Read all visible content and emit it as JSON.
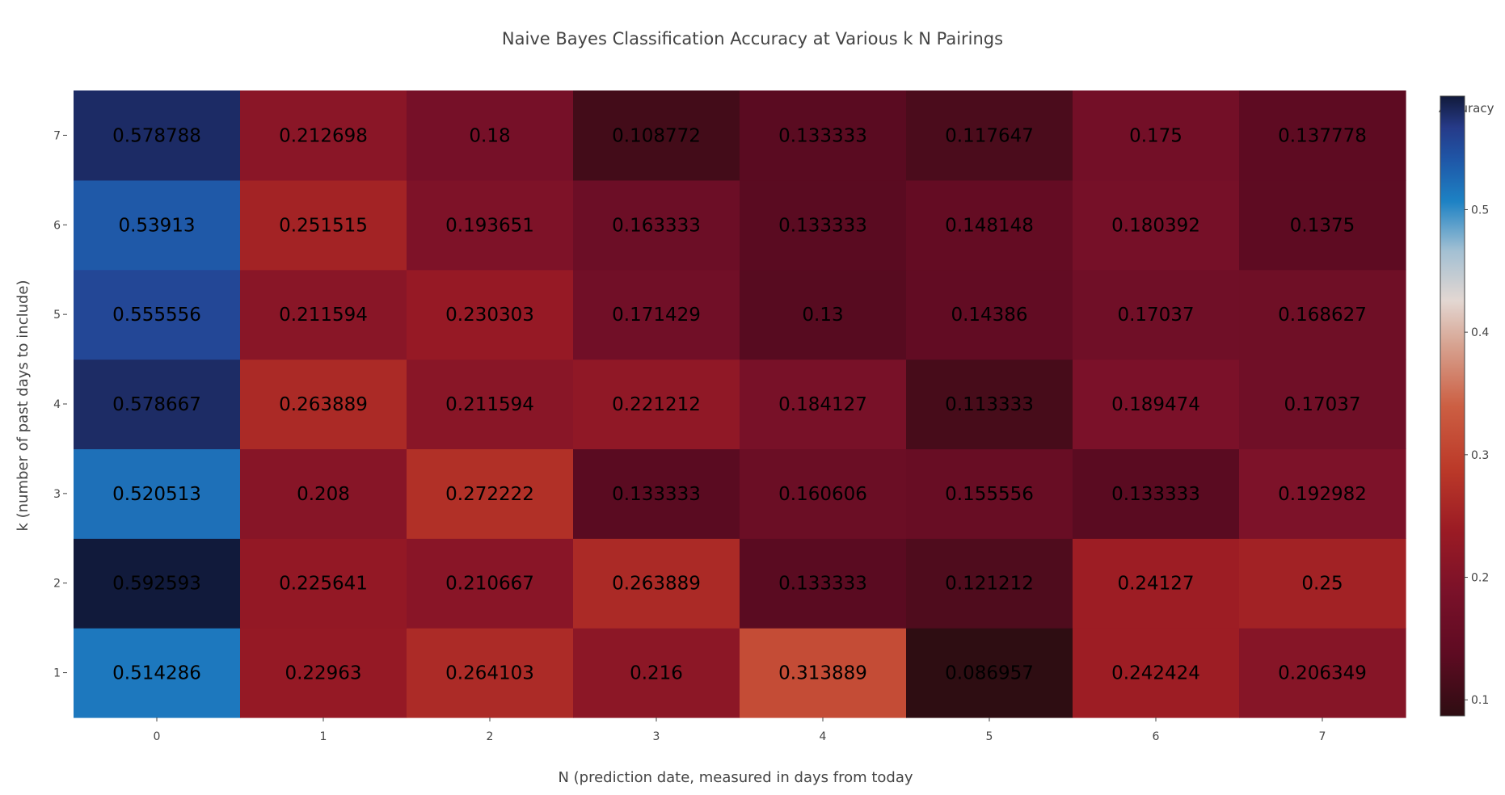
{
  "chart_data": {
    "type": "heatmap",
    "title": "Naive Bayes Classification Accuracy at Various k N Pairings",
    "xlabel": "N (prediction date, measured in days from today",
    "ylabel": "k (number of past days to include)",
    "x": [
      0,
      1,
      2,
      3,
      4,
      5,
      6,
      7
    ],
    "y": [
      1,
      2,
      3,
      4,
      5,
      6,
      7
    ],
    "z": [
      [
        0.514286,
        0.22963,
        0.264103,
        0.216,
        0.313889,
        0.086957,
        0.242424,
        0.206349
      ],
      [
        0.592593,
        0.225641,
        0.210667,
        0.263889,
        0.133333,
        0.121212,
        0.24127,
        0.25
      ],
      [
        0.520513,
        0.208,
        0.272222,
        0.133333,
        0.160606,
        0.155556,
        0.133333,
        0.192982
      ],
      [
        0.578667,
        0.263889,
        0.211594,
        0.221212,
        0.184127,
        0.113333,
        0.189474,
        0.17037
      ],
      [
        0.555556,
        0.211594,
        0.230303,
        0.171429,
        0.13,
        0.14386,
        0.17037,
        0.168627
      ],
      [
        0.53913,
        0.251515,
        0.193651,
        0.163333,
        0.133333,
        0.148148,
        0.180392,
        0.1375
      ],
      [
        0.578788,
        0.212698,
        0.18,
        0.108772,
        0.133333,
        0.117647,
        0.175,
        0.137778
      ]
    ],
    "z_labels": [
      [
        "0.514286",
        "0.22963",
        "0.264103",
        "0.216",
        "0.313889",
        "0.086957",
        "0.242424",
        "0.206349"
      ],
      [
        "0.592593",
        "0.225641",
        "0.210667",
        "0.263889",
        "0.133333",
        "0.121212",
        "0.24127",
        "0.25"
      ],
      [
        "0.520513",
        "0.208",
        "0.272222",
        "0.133333",
        "0.160606",
        "0.155556",
        "0.133333",
        "0.192982"
      ],
      [
        "0.578667",
        "0.263889",
        "0.211594",
        "0.221212",
        "0.184127",
        "0.113333",
        "0.189474",
        "0.17037"
      ],
      [
        "0.555556",
        "0.211594",
        "0.230303",
        "0.171429",
        "0.13",
        "0.14386",
        "0.17037",
        "0.168627"
      ],
      [
        "0.53913",
        "0.251515",
        "0.193651",
        "0.163333",
        "0.133333",
        "0.148148",
        "0.180392",
        "0.1375"
      ],
      [
        "0.578788",
        "0.212698",
        "0.18",
        "0.108772",
        "0.133333",
        "0.117647",
        "0.175",
        "0.137778"
      ]
    ],
    "colorbar": {
      "title": "Accuracy",
      "range": [
        0.086957,
        0.592593
      ],
      "ticks": [
        0.1,
        0.2,
        0.3,
        0.4,
        0.5
      ],
      "tick_labels": [
        "0.1",
        "0.2",
        "0.3",
        "0.4",
        "0.5"
      ]
    },
    "colorscale": [
      [
        0.0,
        "#2e0d12"
      ],
      [
        0.1,
        "#5e0b22"
      ],
      [
        0.2,
        "#7a1129"
      ],
      [
        0.3,
        "#9b1b24"
      ],
      [
        0.4,
        "#bc3a29"
      ],
      [
        0.5,
        "#cc5f43"
      ],
      [
        0.6,
        "#d7a492"
      ],
      [
        0.67,
        "#e3d7d2"
      ],
      [
        0.75,
        "#a3c0d3"
      ],
      [
        0.83,
        "#1d82c4"
      ],
      [
        0.9,
        "#1f55a6"
      ],
      [
        0.95,
        "#263a88"
      ],
      [
        1.0,
        "#111a3b"
      ]
    ],
    "grid": false,
    "legend": "right"
  }
}
